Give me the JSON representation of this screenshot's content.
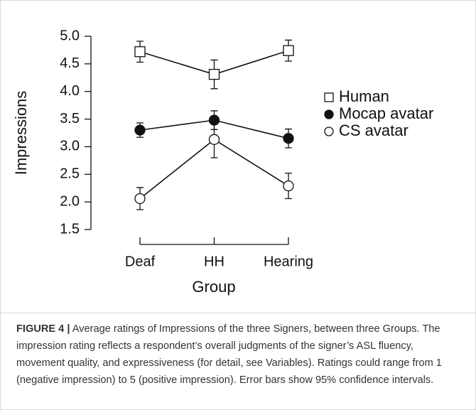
{
  "chart_data": {
    "type": "line",
    "ylabel": "Impressions",
    "xlabel": "Group",
    "categories": [
      "Deaf",
      "HH",
      "Hearing"
    ],
    "ylim": [
      1.5,
      5.0
    ],
    "yticks": [
      1.5,
      {
        "value": 2,
        "label": "2.0"
      },
      2.5,
      {
        "value": 3,
        "label": "3.0"
      },
      3.5,
      {
        "value": 4,
        "label": "4.0"
      },
      4.5,
      {
        "value": 5,
        "label": "5.0"
      }
    ],
    "series": [
      {
        "name": "Human",
        "marker": "square",
        "color": "#111111",
        "fill": "#ffffff",
        "values": [
          4.72,
          4.31,
          4.74
        ],
        "errors": [
          0.19,
          0.26,
          0.19
        ]
      },
      {
        "name": "Mocap avatar",
        "marker": "circle",
        "color": "#111111",
        "fill": "#111111",
        "values": [
          3.3,
          3.48,
          3.15
        ],
        "errors": [
          0.13,
          0.17,
          0.17
        ]
      },
      {
        "name": "CS avatar",
        "marker": "circle",
        "color": "#111111",
        "fill": "#ffffff",
        "values": [
          2.06,
          3.13,
          2.29
        ],
        "errors": [
          0.2,
          0.33,
          0.23
        ]
      }
    ]
  },
  "caption": {
    "label": "FIGURE 4 |",
    "text": "Average ratings of Impressions of the three Signers, between three Groups. The impression rating reflects a respondent’s overall judgments of the signer’s ASL fluency, movement quality, and expressiveness (for detail, see Variables). Ratings could range from 1 (negative impression) to 5 (positive impression). Error bars show 95% confidence intervals."
  }
}
